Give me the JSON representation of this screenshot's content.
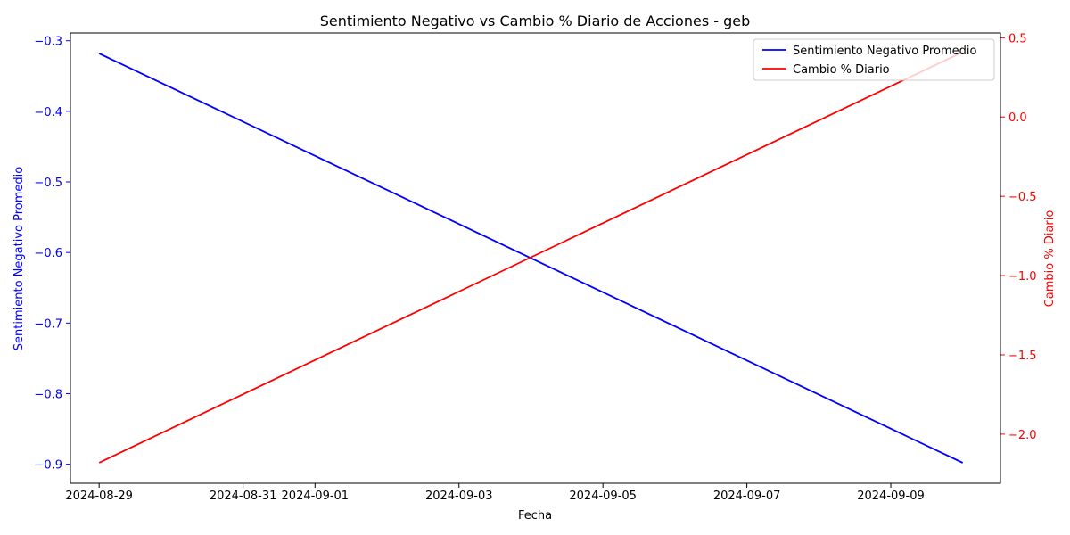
{
  "chart_data": {
    "type": "line",
    "title": "Sentimiento Negativo vs Cambio % Diario de Acciones - geb",
    "xlabel": "Fecha",
    "x": [
      "2024-08-29",
      "2024-09-10"
    ],
    "x_ticks": [
      "2024-08-29",
      "2024-08-31",
      "2024-09-01",
      "2024-09-03",
      "2024-09-05",
      "2024-09-07",
      "2024-09-09"
    ],
    "x_range": [
      "2024-08-28T14:26",
      "2024-09-10T12:34"
    ],
    "y_left": {
      "label": "Sentimiento Negativo Promedio",
      "color": "#0000ff",
      "ylim": [
        -0.927,
        -0.289
      ],
      "ticks": [
        -0.3,
        -0.4,
        -0.5,
        -0.6,
        -0.7,
        -0.8,
        -0.9
      ],
      "tick_labels": [
        "−0.3",
        "−0.4",
        "−0.5",
        "−0.6",
        "−0.7",
        "−0.8",
        "−0.9"
      ]
    },
    "y_right": {
      "label": "Cambio % Diario",
      "color": "#ff0000",
      "ylim": [
        -2.31,
        0.53
      ],
      "ticks": [
        0.5,
        0.0,
        -0.5,
        -1.0,
        -1.5,
        -2.0
      ],
      "tick_labels": [
        "0.5",
        "0.0",
        "−0.5",
        "−1.0",
        "−1.5",
        "−2.0"
      ]
    },
    "series": [
      {
        "name": "Sentimiento Negativo Promedio",
        "axis": "left",
        "color": "#0000ff",
        "values": [
          -0.318,
          -0.898
        ]
      },
      {
        "name": "Cambio % Diario",
        "axis": "right",
        "color": "#ff0000",
        "values": [
          -2.18,
          0.41
        ]
      }
    ],
    "legend_position": "top-right",
    "grid": false
  }
}
